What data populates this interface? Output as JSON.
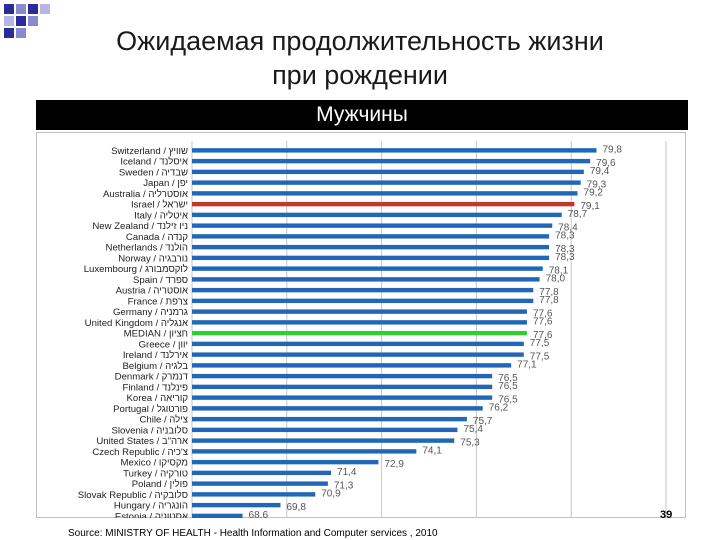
{
  "slide": {
    "title_line1": "Ожидаемая продолжительность жизни",
    "title_line2": "при рождении",
    "banner": "Мужчины",
    "source": "Source: MINISTRY OF HEALTH - Health Information and Computer services , 2010",
    "page_number": "39"
  },
  "colors": {
    "bar": "#2266b8",
    "israel_bar": "#c0392b",
    "median_bar": "#33cc33",
    "gridline": "#c6c6c6",
    "value_label": "#555555"
  },
  "chart_data": {
    "type": "bar",
    "orientation": "horizontal",
    "categories": [
      "Switzerland / שוויץ",
      "Iceland / איסלנד",
      "Sweden / שבדיה",
      "Japan / יפן",
      "Australia / אוסטרליה",
      "Israel / ישראל",
      "Italy / איטליה",
      "New Zealand / ניו זילנד",
      "Canada / קנדה",
      "Netherlands / הולנד",
      "Norway / נורבגיה",
      "Luxembourg / לוקסמבורג",
      "Spain / ספרד",
      "Austria / אוסטריה",
      "France / צרפת",
      "Germany / גרמניה",
      "United Kingdom / אנגליה",
      "MEDIAN / חציון",
      "Greece / יוון",
      "Ireland / אירלנד",
      "Belgium / בלגיה",
      "Denmark / דנמרק",
      "Finland / פינלנד",
      "Korea / קוריאה",
      "Portugal / פורטוגל",
      "Chile / צילה",
      "Slovenia / סלובניה",
      "United States / ארה\"ב",
      "Czech Republic / צ'כיה",
      "Mexico / מקסיקו",
      "Turkey / טורקיה",
      "Poland / פולין",
      "Slovak Republic / סלובקיה",
      "Hungary / הונגריה",
      "Estonia / אסטוניה"
    ],
    "values": [
      79.8,
      79.6,
      79.4,
      79.3,
      79.2,
      79.1,
      78.7,
      78.4,
      78.3,
      78.3,
      78.3,
      78.1,
      78.0,
      77.8,
      77.8,
      77.6,
      77.6,
      77.6,
      77.5,
      77.5,
      77.1,
      76.5,
      76.5,
      76.5,
      76.2,
      75.7,
      75.4,
      75.3,
      74.1,
      72.9,
      71.4,
      71.3,
      70.9,
      69.8,
      68.6
    ],
    "value_labels": [
      "79,8",
      "79,6",
      "79,4",
      "79,3",
      "79,2",
      "79,1",
      "78,7",
      "78,4",
      "78,3",
      "78,3",
      "78,3",
      "78,1",
      "78,0",
      "77,8",
      "77,8",
      "77,6",
      "77,6",
      "77,6",
      "77,5",
      "77,5",
      "77,1",
      "76,5",
      "76,5",
      "76,5",
      "76,2",
      "75,7",
      "75,4",
      "75,3",
      "74,1",
      "72,9",
      "71,4",
      "71,3",
      "70,9",
      "69,8",
      "68,6"
    ],
    "highlight": {
      "Israel / ישראל": "israel_bar",
      "MEDIAN / חציון": "median_bar"
    },
    "xlim": [
      67,
      82
    ],
    "xticks": [
      "67",
      "70",
      "73",
      "76",
      "79",
      "82"
    ],
    "grid": true,
    "legend": "none"
  }
}
